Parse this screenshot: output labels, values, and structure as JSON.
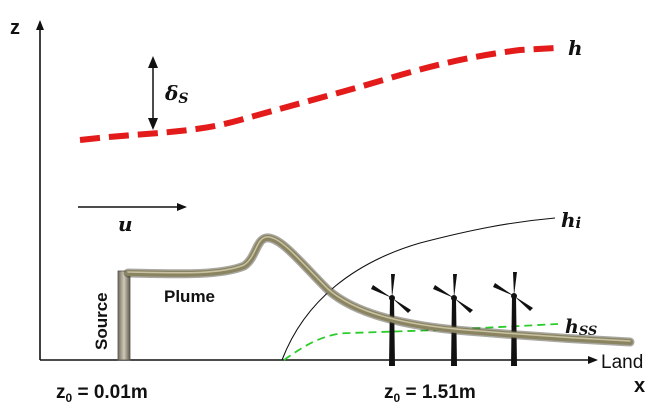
{
  "axes": {
    "z_label": "z",
    "x_label": "x"
  },
  "labels": {
    "boundary_layer": "h",
    "delta_s_symbol": "δ",
    "delta_s_sub": "S",
    "wind": "u",
    "internal_boundary": "h",
    "internal_boundary_sub": "i",
    "stable_layer": "h",
    "stable_layer_sub": "SS",
    "plume": "Plume",
    "source": "Source",
    "land": "Land"
  },
  "roughness": {
    "sea": {
      "prefix": "z",
      "sub": "0",
      "value": " = 0.01m"
    },
    "land": {
      "prefix": "z",
      "sub": "0",
      "value": " = 1.51m"
    }
  },
  "colors": {
    "boundary_layer": "#e31b1b",
    "stable_layer": "#2bcc2b",
    "plume": "#8a8460",
    "axis": "#111111"
  },
  "icons": {
    "turbines": [
      "wind-turbine-icon",
      "wind-turbine-icon",
      "wind-turbine-icon"
    ]
  }
}
